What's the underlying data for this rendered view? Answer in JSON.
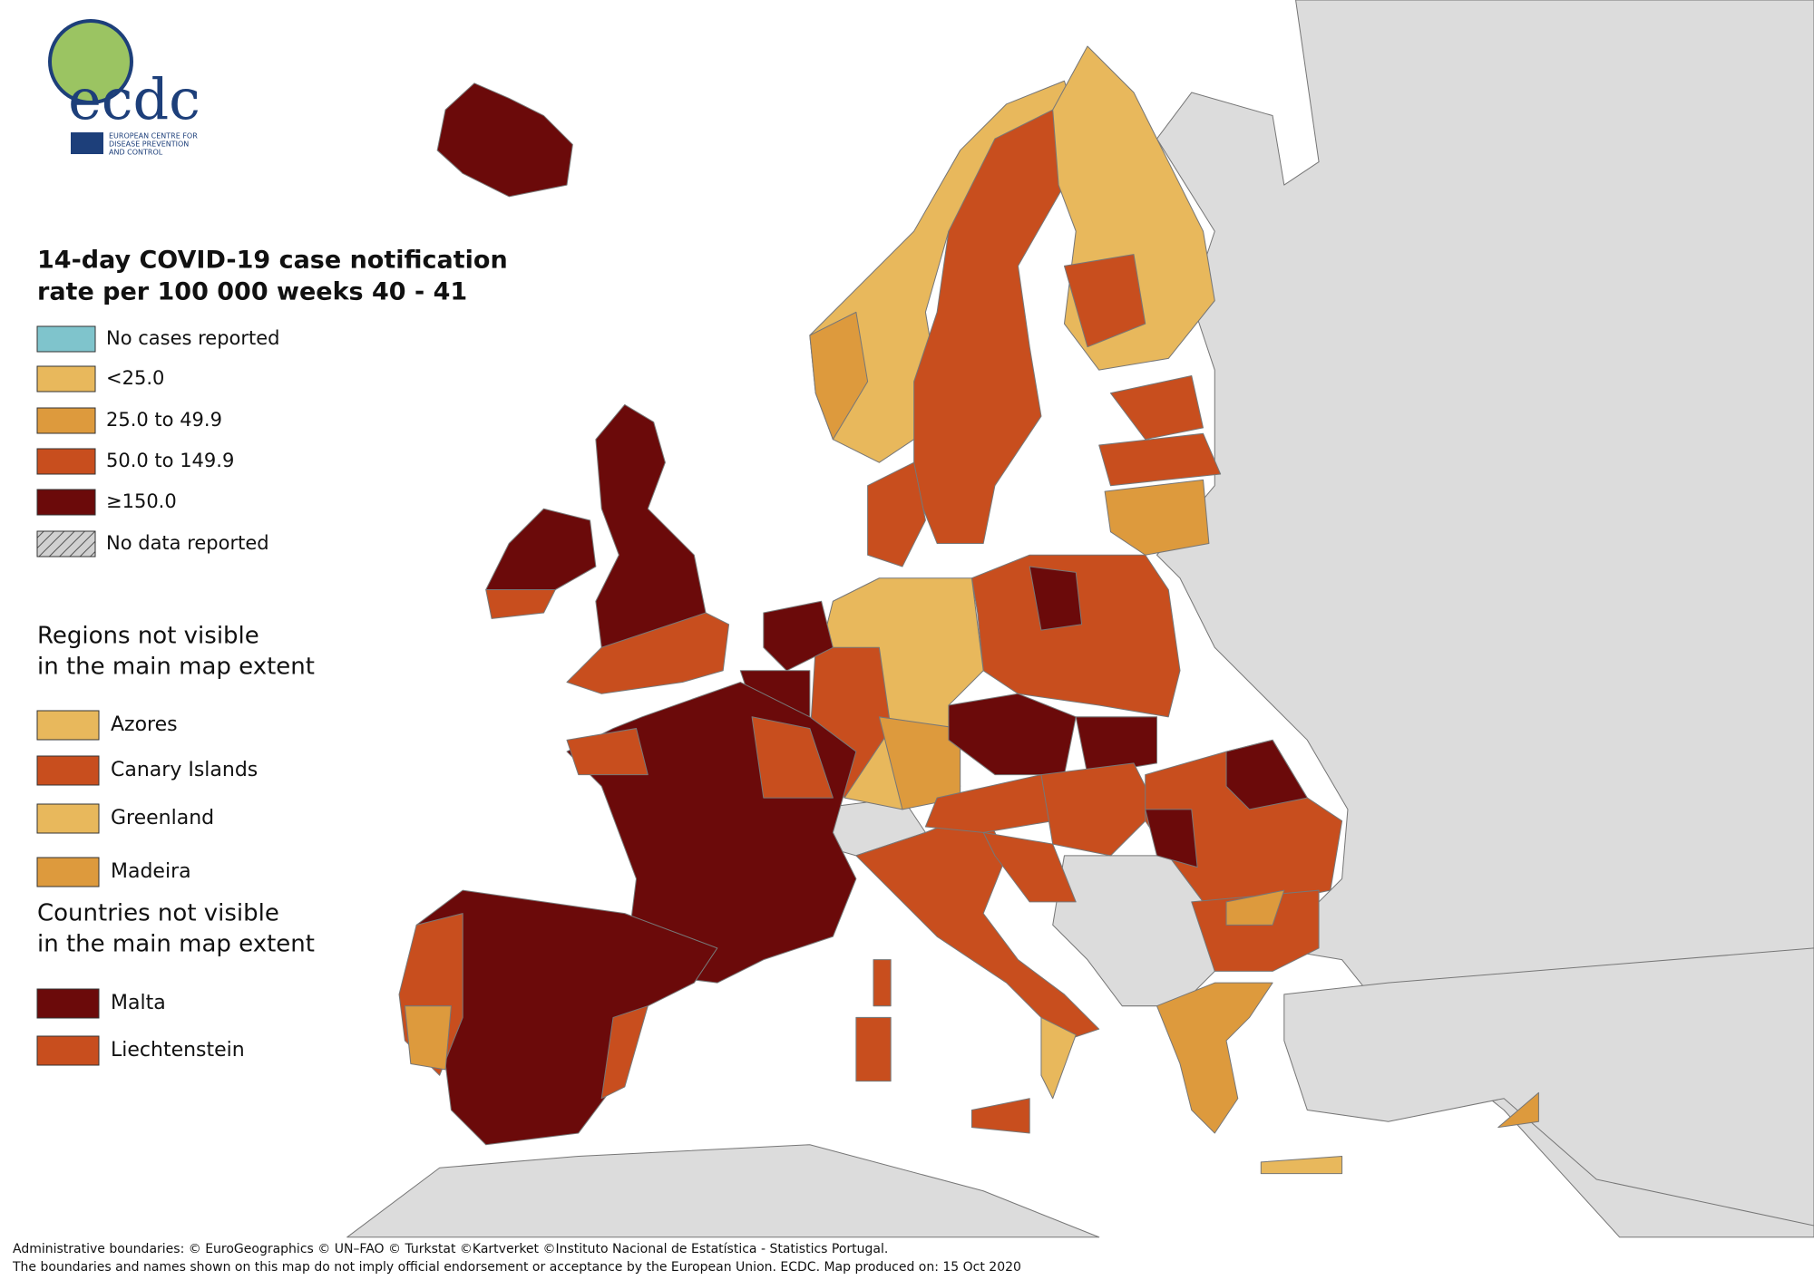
{
  "logo": {
    "acronym": "ecdc",
    "name_lines": [
      "EUROPEAN CENTRE FOR",
      "DISEASE PREVENTION",
      "AND CONTROL"
    ]
  },
  "legend": {
    "title": [
      "14-day COVID-19 case notification",
      "rate per 100 000 weeks 40 - 41"
    ],
    "items": [
      {
        "label": "No cases reported",
        "color": "#7fc4cc"
      },
      {
        "label": "<25.0",
        "color": "#e8b85c"
      },
      {
        "label": "25.0 to 49.9",
        "color": "#dd9a3d"
      },
      {
        "label": "50.0 to 149.9",
        "color": "#c84e1e"
      },
      {
        "label": "≥150.0",
        "color": "#6b0a0a"
      },
      {
        "label": "No data reported",
        "color": "#b0b0b0",
        "pattern": "hatch"
      }
    ]
  },
  "regions_not_visible": {
    "title": [
      "Regions not visible",
      "in the main map extent"
    ],
    "items": [
      {
        "label": "Azores",
        "color": "#e8b85c"
      },
      {
        "label": "Canary Islands",
        "color": "#c84e1e"
      },
      {
        "label": "Greenland",
        "color": "#e8b85c"
      },
      {
        "label": "Madeira",
        "color": "#dd9a3d"
      }
    ]
  },
  "countries_not_visible": {
    "title": [
      "Countries not visible",
      "in the main map extent"
    ],
    "items": [
      {
        "label": "Malta",
        "color": "#6b0a0a"
      },
      {
        "label": "Liechtenstein",
        "color": "#c84e1e"
      }
    ]
  },
  "footer": [
    "Administrative boundaries: © EuroGeographics © UN–FAO © Turkstat ©Kartverket ©Instituto Nacional de Estatística - Statistics Portugal.",
    "The boundaries and names shown on this map do not imply official endorsement or acceptance by the European Union. ECDC. Map produced on: 15 Oct 2020"
  ]
}
